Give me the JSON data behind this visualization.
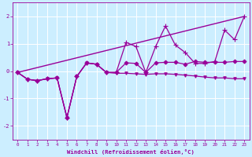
{
  "xlabel": "Windchill (Refroidissement éolien,°C)",
  "bg_color": "#cceeff",
  "grid_color": "#ffffff",
  "line_color": "#990099",
  "xlim": [
    -0.5,
    23.5
  ],
  "ylim": [
    -2.5,
    2.5
  ],
  "xticks": [
    0,
    1,
    2,
    3,
    4,
    5,
    6,
    7,
    8,
    9,
    10,
    11,
    12,
    13,
    14,
    15,
    16,
    17,
    18,
    19,
    20,
    21,
    22,
    23
  ],
  "yticks": [
    -2,
    -1,
    0,
    1,
    2
  ],
  "series": [
    {
      "x": [
        0,
        1,
        2,
        3,
        4,
        5,
        6,
        7,
        8,
        9,
        10,
        11,
        12,
        13,
        14,
        15,
        16,
        17,
        18,
        19,
        20,
        21,
        22,
        23
      ],
      "y": [
        -0.05,
        -0.3,
        -0.35,
        -0.28,
        -0.25,
        -1.7,
        -0.2,
        0.3,
        0.25,
        -0.05,
        -0.05,
        1.05,
        0.9,
        -0.05,
        0.9,
        1.65,
        0.95,
        0.68,
        0.28,
        0.28,
        0.35,
        1.5,
        1.15,
        2.0
      ],
      "marker": "+",
      "markersize": 4,
      "linewidth": 0.9
    },
    {
      "x": [
        0,
        1,
        2,
        3,
        4,
        5,
        6,
        7,
        8,
        9,
        10,
        11,
        12,
        13,
        14,
        15,
        16,
        17,
        18,
        19,
        20,
        21,
        22,
        23
      ],
      "y": [
        -0.05,
        -0.3,
        -0.35,
        -0.28,
        -0.25,
        -1.7,
        -0.2,
        0.3,
        0.25,
        -0.05,
        -0.05,
        0.3,
        0.28,
        -0.05,
        0.3,
        0.32,
        0.32,
        0.25,
        0.35,
        0.32,
        0.32,
        0.32,
        0.35,
        0.35
      ],
      "marker": "D",
      "markersize": 2.5,
      "linewidth": 0.9
    },
    {
      "x": [
        0,
        1,
        2,
        3,
        4,
        5,
        6,
        7,
        8,
        9,
        10,
        11,
        12,
        13,
        14,
        15,
        16,
        17,
        18,
        19,
        20,
        21,
        22,
        23
      ],
      "y": [
        -0.05,
        -0.3,
        -0.35,
        -0.28,
        -0.25,
        -1.7,
        -0.2,
        0.3,
        0.25,
        -0.05,
        -0.08,
        -0.08,
        -0.1,
        -0.12,
        -0.1,
        -0.1,
        -0.12,
        -0.15,
        -0.18,
        -0.22,
        -0.25,
        -0.25,
        -0.28,
        -0.28
      ],
      "marker": "v",
      "markersize": 2.5,
      "linewidth": 0.9
    },
    {
      "x": [
        0,
        23
      ],
      "y": [
        -0.05,
        2.0
      ],
      "marker": null,
      "markersize": 0,
      "linewidth": 1.0
    }
  ]
}
